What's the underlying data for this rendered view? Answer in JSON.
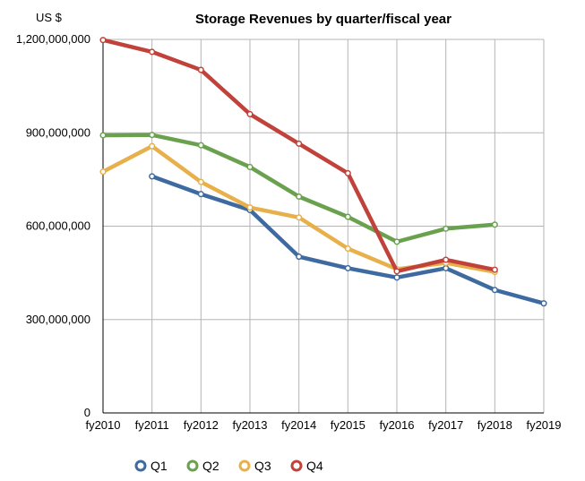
{
  "chart_data": {
    "type": "line",
    "title": "Storage Revenues by quarter/fiscal year",
    "ylabel": "US $",
    "xlabel": "",
    "categories": [
      "fy2010",
      "fy2011",
      "fy2012",
      "fy2013",
      "fy2014",
      "fy2015",
      "fy2016",
      "fy2017",
      "fy2018",
      "fy2019"
    ],
    "ylim": [
      0,
      1200000000
    ],
    "yticks": [
      0,
      300000000,
      600000000,
      900000000,
      1200000000
    ],
    "ytick_labels": [
      "0",
      "300,000,000",
      "600,000,000",
      "900,000,000",
      "1,200,000,000"
    ],
    "grid": true,
    "legend_position": "bottom",
    "series": [
      {
        "name": "Q1",
        "color": "#3d6aa0",
        "values": [
          null,
          760000000,
          703000000,
          652000000,
          502000000,
          465000000,
          435000000,
          465000000,
          395000000,
          352000000
        ]
      },
      {
        "name": "Q2",
        "color": "#6aa14f",
        "values": [
          892000000,
          893000000,
          860000000,
          790000000,
          695000000,
          630000000,
          550000000,
          592000000,
          605000000,
          null
        ]
      },
      {
        "name": "Q3",
        "color": "#e8b04b",
        "values": [
          775000000,
          857000000,
          742000000,
          660000000,
          628000000,
          528000000,
          462000000,
          482000000,
          453000000,
          null
        ]
      },
      {
        "name": "Q4",
        "color": "#c0423a",
        "values": [
          1198000000,
          1160000000,
          1102000000,
          960000000,
          865000000,
          770000000,
          455000000,
          492000000,
          460000000,
          null
        ]
      }
    ]
  }
}
